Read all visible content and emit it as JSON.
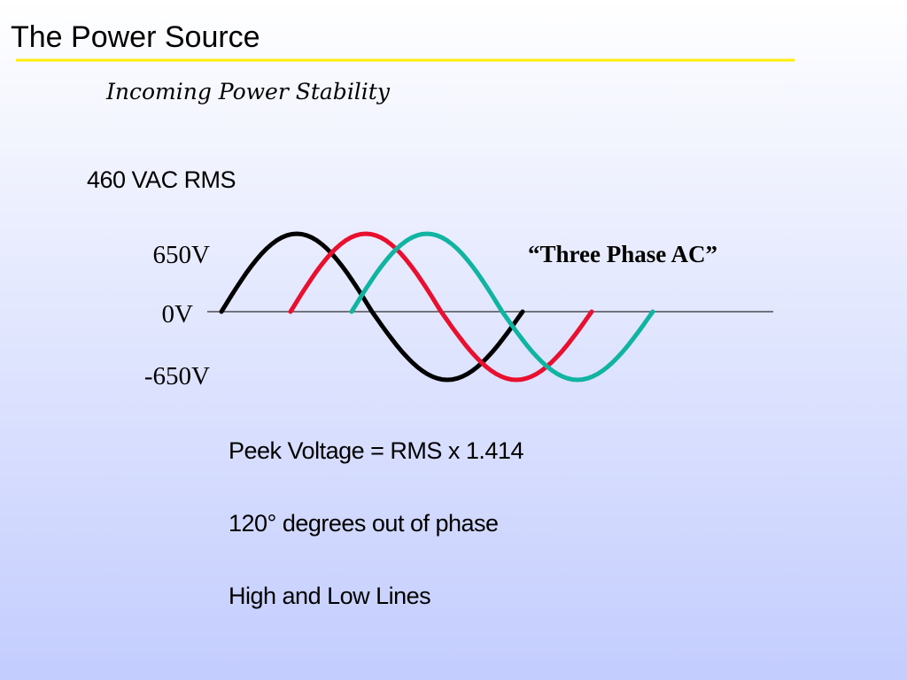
{
  "header": {
    "title": "The Power Source",
    "subtitle": "Incoming Power Stability"
  },
  "rms_label": "460 VAC RMS",
  "waveform": {
    "labels": [
      "650V",
      "0V",
      "-650V"
    ],
    "caption": "“Three Phase AC”"
  },
  "notes": [
    "Peek Voltage = RMS x 1.414",
    "120° degrees out of phase",
    "High and Low Lines"
  ]
}
